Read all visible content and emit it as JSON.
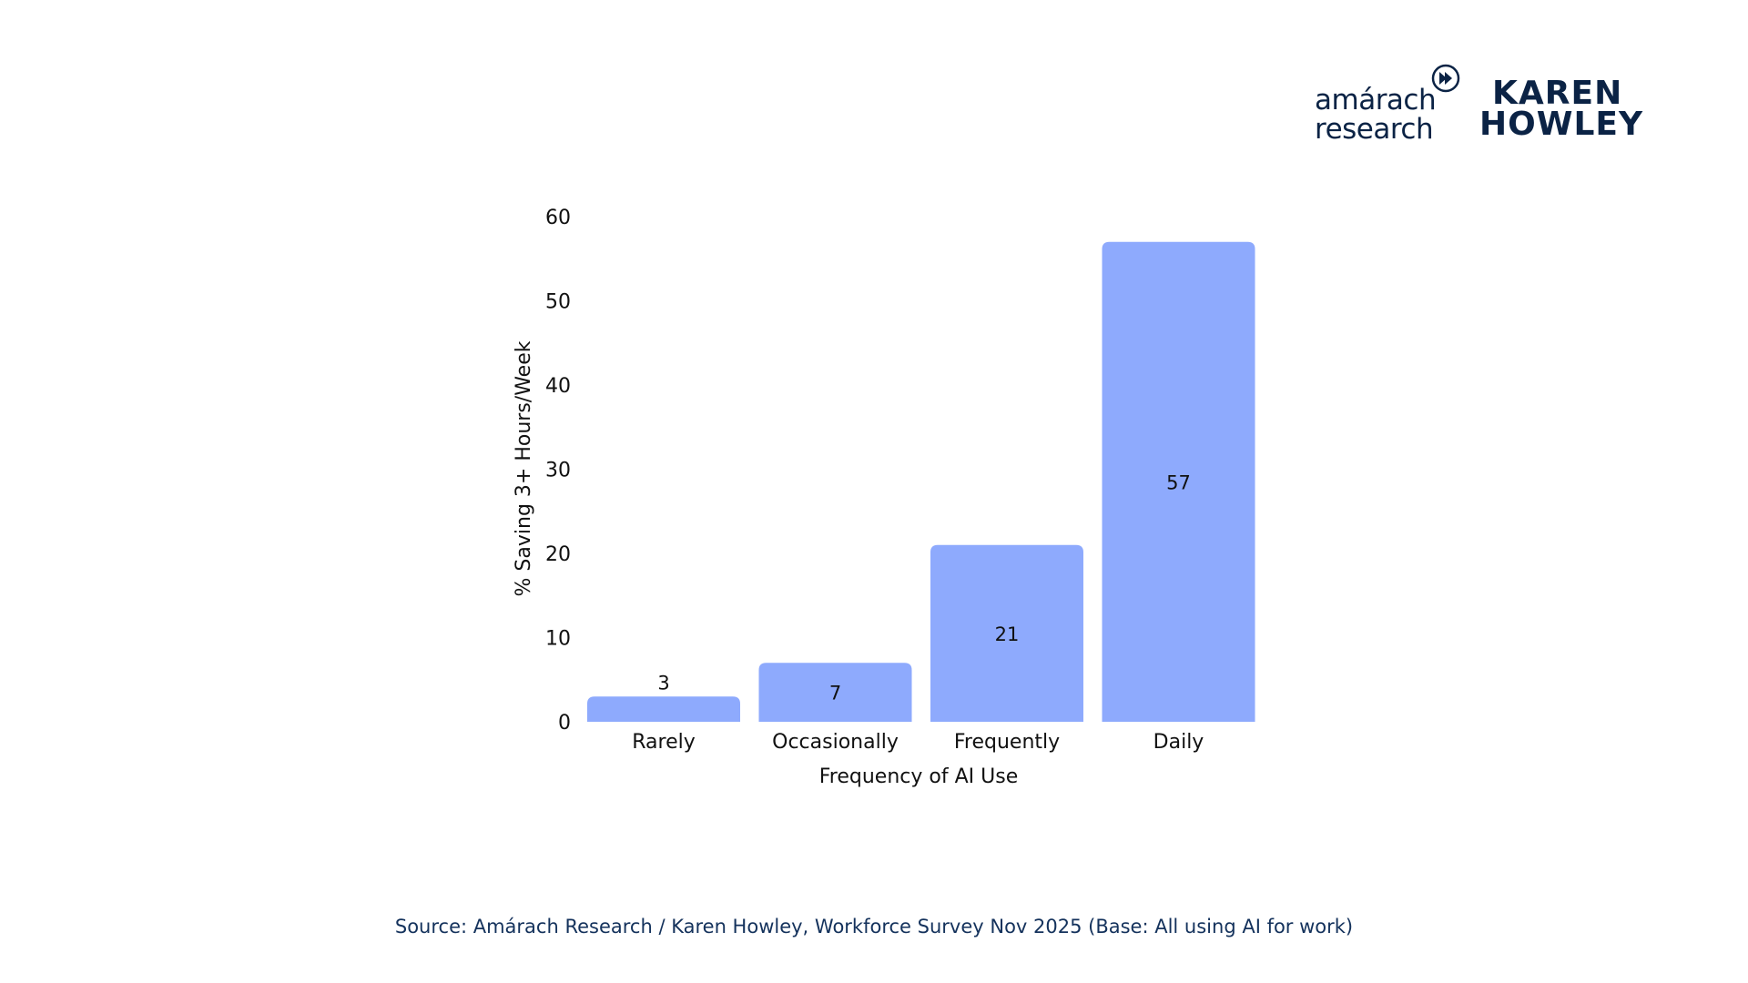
{
  "logos": {
    "amarach": {
      "line1": "amárach",
      "line2": "research"
    },
    "karen_howley": {
      "line1": "KAREN",
      "line2": "HOWLEY"
    }
  },
  "source_note": "Source: Amárach Research / Karen Howley, Workforce Survey Nov 2025 (Base: All using AI for work)",
  "colors": {
    "bar": "#8eaafd",
    "text": "#111111",
    "brand": "#0b2345",
    "source": "#14325c"
  },
  "chart_data": {
    "type": "bar",
    "title": "",
    "categories": [
      "Rarely",
      "Occasionally",
      "Frequently",
      "Daily"
    ],
    "values": [
      3,
      7,
      21,
      57
    ],
    "data_labels": [
      "3",
      "7",
      "21",
      "57"
    ],
    "xlabel": "Frequency of AI Use",
    "ylabel": "% Saving 3+ Hours/Week",
    "ylim": [
      0,
      60
    ],
    "yticks": [
      0,
      10,
      20,
      30,
      40,
      50,
      60
    ],
    "grid": false,
    "legend": "none"
  }
}
